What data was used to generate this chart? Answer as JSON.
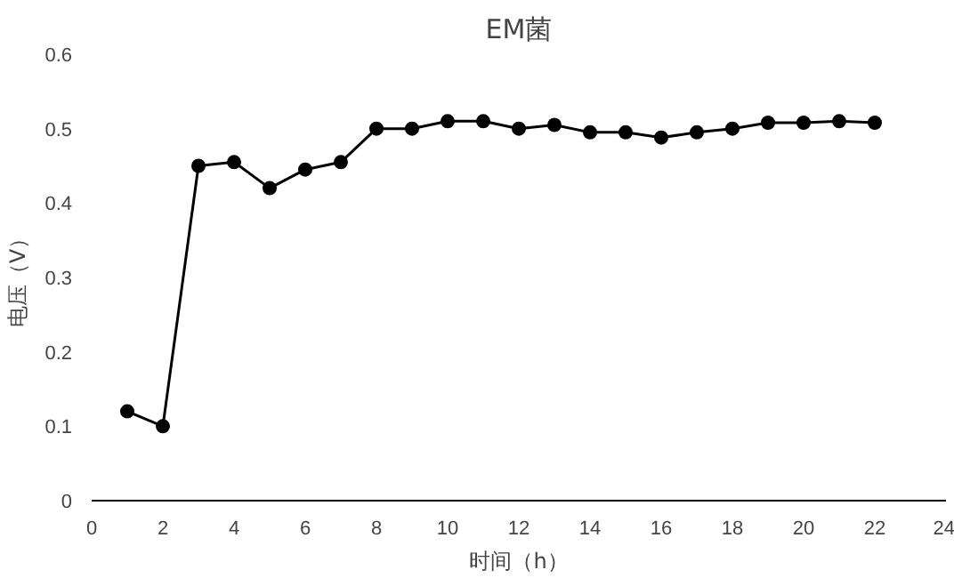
{
  "chart_data": {
    "type": "line",
    "title": "EM菌",
    "xlabel": "时间（h）",
    "ylabel": "电压（V）",
    "x": [
      1,
      2,
      3,
      4,
      5,
      6,
      7,
      8,
      9,
      10,
      11,
      12,
      13,
      14,
      15,
      16,
      17,
      18,
      19,
      20,
      21,
      22
    ],
    "series": [
      {
        "color": "#000000",
        "values": [
          0.12,
          0.1,
          0.45,
          0.455,
          0.42,
          0.445,
          0.455,
          0.5,
          0.5,
          0.51,
          0.51,
          0.5,
          0.505,
          0.495,
          0.495,
          0.488,
          0.495,
          0.5,
          0.508,
          0.508,
          0.51,
          0.508
        ]
      }
    ],
    "xlim": [
      0,
      24
    ],
    "xticks": [
      0,
      2,
      4,
      6,
      8,
      10,
      12,
      14,
      16,
      18,
      20,
      22,
      24
    ],
    "ylim": [
      0,
      0.6
    ],
    "yticks": [
      {
        "value": 0,
        "label": "0"
      },
      0.1,
      0.2,
      0.3,
      0.4,
      0.5,
      0.6
    ],
    "grid": false,
    "marker": "circle",
    "line_style": "solid"
  }
}
